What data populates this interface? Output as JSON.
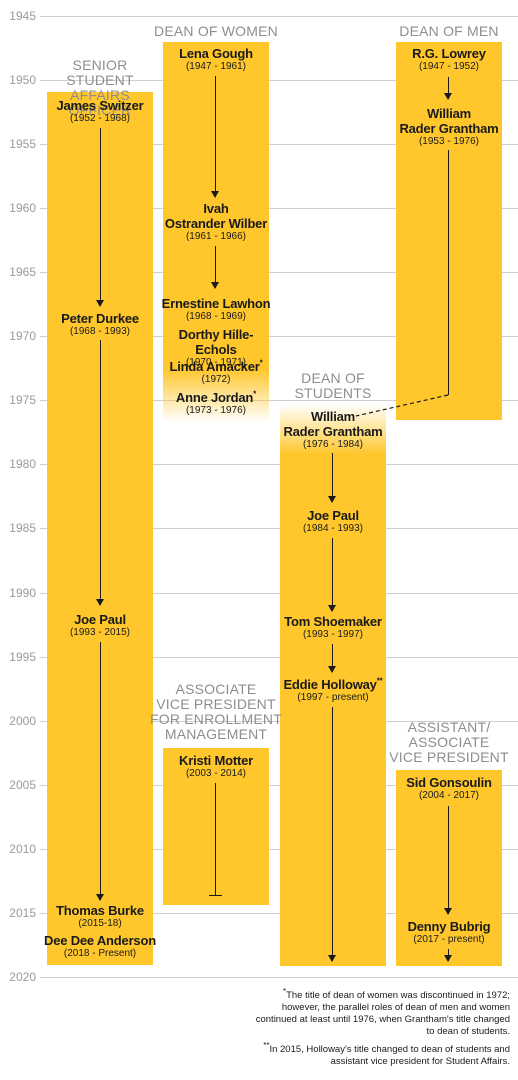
{
  "years": [
    "1945",
    "1950",
    "1955",
    "1960",
    "1965",
    "1970",
    "1975",
    "1980",
    "1985",
    "1990",
    "1995",
    "2000",
    "2005",
    "2010",
    "2015",
    "2020"
  ],
  "columns": {
    "ssao": {
      "title": "SENIOR STUDENT AFFAIRS OFFICER",
      "people": [
        {
          "name": "James Switzer",
          "years": "(1952 - 1968)"
        },
        {
          "name": "Peter Durkee",
          "years": "(1968 - 1993)"
        },
        {
          "name": "Joe Paul",
          "years": "(1993 - 2015)"
        },
        {
          "name": "Thomas Burke",
          "years": "(2015-18)"
        },
        {
          "name": "Dee Dee Anderson",
          "years": "(2018 - Present)"
        }
      ]
    },
    "dean_women": {
      "title": "DEAN OF WOMEN",
      "people": [
        {
          "name": "Lena Gough",
          "years": "(1947 - 1961)"
        },
        {
          "name": "Ivah Ostrander Wilber",
          "name_line1": "Ivah",
          "name_line2": "Ostrander Wilber",
          "years": "(1961 - 1966)"
        },
        {
          "name": "Ernestine Lawhon",
          "years": "(1968 - 1969)"
        },
        {
          "name": "Dorthy Hille-Echols",
          "years": "(1970 - 1971)"
        },
        {
          "name": "Linda Amacker",
          "mark": "*",
          "years": "(1972)"
        },
        {
          "name": "Anne Jordan",
          "mark": "*",
          "years": "(1973 - 1976)"
        }
      ]
    },
    "dean_men": {
      "title": "DEAN OF MEN",
      "people": [
        {
          "name": "R.G. Lowrey",
          "years": "(1947 - 1952)"
        },
        {
          "name": "William Rader Grantham",
          "name_line1": "William",
          "name_line2": "Rader Grantham",
          "years": "(1953 - 1976)"
        }
      ]
    },
    "dean_students": {
      "title": "DEAN OF STUDENTS",
      "title_line1": "DEAN OF",
      "title_line2": "STUDENTS",
      "people": [
        {
          "name": "William Rader Grantham",
          "name_line1": "William",
          "name_line2": "Rader Grantham",
          "years": "(1976 - 1984)"
        },
        {
          "name": "Joe Paul",
          "years": "(1984 - 1993)"
        },
        {
          "name": "Tom Shoemaker",
          "years": "(1993 - 1997)"
        },
        {
          "name": "Eddie Holloway",
          "mark": "**",
          "years": "(1997 - present)"
        }
      ]
    },
    "avp_enrollment": {
      "title": "ASSOCIATE VICE PRESIDENT FOR ENROLLMENT MANAGEMENT",
      "title_line1": "ASSOCIATE",
      "title_line2": "VICE PRESIDENT",
      "title_line3": "FOR ENROLLMENT",
      "title_line4": "MANAGEMENT",
      "people": [
        {
          "name": "Kristi Motter",
          "years": "(2003 - 2014)"
        }
      ]
    },
    "asst_vp": {
      "title": "ASSISTANT/ ASSOCIATE VICE PRESIDENT",
      "title_line1": "ASSISTANT/",
      "title_line2": "ASSOCIATE",
      "title_line3": "VICE PRESIDENT",
      "people": [
        {
          "name": "Sid Gonsoulin",
          "years": "(2004 - 2017)"
        },
        {
          "name": "Denny Bubrig",
          "years": "(2017 - present)"
        }
      ]
    }
  },
  "footnotes": {
    "one_mark": "*",
    "one": "The title of dean of women was discontinued in 1972; however, the parallel roles of dean of men and women continued at least until 1976, when Grantham's title changed to dean of students.",
    "two_mark": "**",
    "two": "In 2015, Holloway's title changed to dean of students and assistant vice president for Student Affairs."
  },
  "colors": {
    "accent": "#ffc72c",
    "text": "#1a1a1a",
    "axis": "#9a9a9a"
  }
}
